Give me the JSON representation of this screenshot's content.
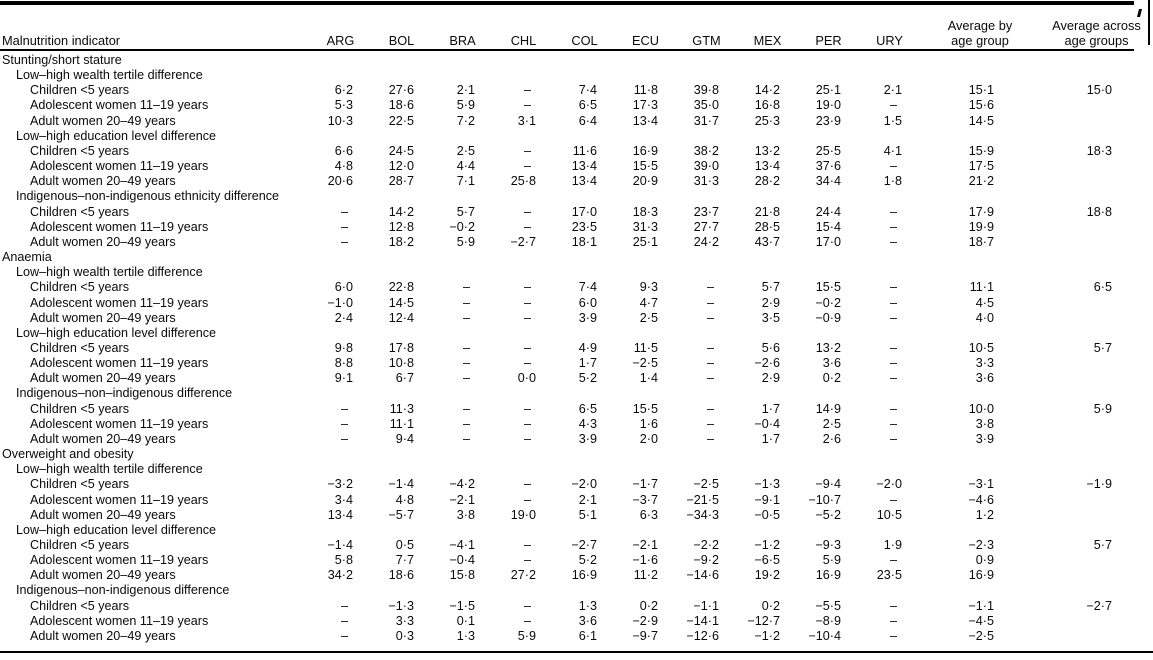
{
  "table": {
    "header": {
      "indicator": "Malnutrition indicator",
      "avg_by": [
        "Average by",
        "age group"
      ],
      "avg_across": [
        "Average across",
        "age groups"
      ]
    },
    "columns": [
      "ARG",
      "BOL",
      "BRA",
      "CHL",
      "COL",
      "ECU",
      "GTM",
      "MEX",
      "PER",
      "URY"
    ],
    "sections": [
      {
        "label": "Stunting/short stature",
        "groups": [
          {
            "label": "Low–high wealth tertile difference",
            "rows": [
              {
                "label": "Children <5 years",
                "values": [
                  "6·2",
                  "27·6",
                  "2·1",
                  "–",
                  "7·4",
                  "11·8",
                  "39·8",
                  "14·2",
                  "25·1",
                  "2·1"
                ],
                "avg_by": "15·1",
                "avg_across": "15·0"
              },
              {
                "label": "Adolescent women 11–19 years",
                "values": [
                  "5·3",
                  "18·6",
                  "5·9",
                  "–",
                  "6·5",
                  "17·3",
                  "35·0",
                  "16·8",
                  "19·0",
                  "–"
                ],
                "avg_by": "15·6"
              },
              {
                "label": "Adult women 20–49 years",
                "values": [
                  "10·3",
                  "22·5",
                  "7·2",
                  "3·1",
                  "6·4",
                  "13·4",
                  "31·7",
                  "25·3",
                  "23·9",
                  "1·5"
                ],
                "avg_by": "14·5"
              }
            ]
          },
          {
            "label": "Low–high education level difference",
            "rows": [
              {
                "label": "Children <5 years",
                "values": [
                  "6·6",
                  "24·5",
                  "2·5",
                  "–",
                  "11·6",
                  "16·9",
                  "38·2",
                  "13·2",
                  "25·5",
                  "4·1"
                ],
                "avg_by": "15·9",
                "avg_across": "18·3"
              },
              {
                "label": "Adolescent women 11–19 years",
                "values": [
                  "4·8",
                  "12·0",
                  "4·4",
                  "–",
                  "13·4",
                  "15·5",
                  "39·0",
                  "13·4",
                  "37·6",
                  "–"
                ],
                "avg_by": "17·5"
              },
              {
                "label": "Adult women 20–49 years",
                "values": [
                  "20·6",
                  "28·7",
                  "7·1",
                  "25·8",
                  "13·4",
                  "20·9",
                  "31·3",
                  "28·2",
                  "34·4",
                  "1·8"
                ],
                "avg_by": "21·2"
              }
            ]
          },
          {
            "label": "Indigenous–non-indigenous ethnicity difference",
            "rows": [
              {
                "label": "Children <5 years",
                "values": [
                  "–",
                  "14·2",
                  "5·7",
                  "–",
                  "17·0",
                  "18·3",
                  "23·7",
                  "21·8",
                  "24·4",
                  "–"
                ],
                "avg_by": "17·9",
                "avg_across": "18·8"
              },
              {
                "label": "Adolescent women 11–19 years",
                "values": [
                  "–",
                  "12·8",
                  "−0·2",
                  "–",
                  "23·5",
                  "31·3",
                  "27·7",
                  "28·5",
                  "15·4",
                  "–"
                ],
                "avg_by": "19·9"
              },
              {
                "label": "Adult women 20–49 years",
                "values": [
                  "–",
                  "18·2",
                  "5·9",
                  "−2·7",
                  "18·1",
                  "25·1",
                  "24·2",
                  "43·7",
                  "17·0",
                  "–"
                ],
                "avg_by": "18·7"
              }
            ]
          }
        ]
      },
      {
        "label": "Anaemia",
        "groups": [
          {
            "label": "Low–high wealth tertile difference",
            "rows": [
              {
                "label": "Children <5 years",
                "values": [
                  "6·0",
                  "22·8",
                  "–",
                  "–",
                  "7·4",
                  "9·3",
                  "–",
                  "5·7",
                  "15·5",
                  "–"
                ],
                "avg_by": "11·1",
                "avg_across": "6·5"
              },
              {
                "label": "Adolescent women 11–19 years",
                "values": [
                  "−1·0",
                  "14·5",
                  "–",
                  "–",
                  "6·0",
                  "4·7",
                  "–",
                  "2·9",
                  "−0·2",
                  "–"
                ],
                "avg_by": "4·5"
              },
              {
                "label": "Adult women 20–49 years",
                "values": [
                  "2·4",
                  "12·4",
                  "–",
                  "–",
                  "3·9",
                  "2·5",
                  "–",
                  "3·5",
                  "−0·9",
                  "–"
                ],
                "avg_by": "4·0"
              }
            ]
          },
          {
            "label": "Low–high education level difference",
            "rows": [
              {
                "label": "Children <5 years",
                "values": [
                  "9·8",
                  "17·8",
                  "–",
                  "–",
                  "4·9",
                  "11·5",
                  "–",
                  "5·6",
                  "13·2",
                  "–"
                ],
                "avg_by": "10·5",
                "avg_across": "5·7"
              },
              {
                "label": "Adolescent women 11–19 years",
                "values": [
                  "8·8",
                  "10·8",
                  "–",
                  "–",
                  "1·7",
                  "−2·5",
                  "–",
                  "−2·6",
                  "3·6",
                  "–"
                ],
                "avg_by": "3·3"
              },
              {
                "label": "Adult women 20–49 years",
                "values": [
                  "9·1",
                  "6·7",
                  "–",
                  "0·0",
                  "5·2",
                  "1·4",
                  "–",
                  "2·9",
                  "0·2",
                  "–"
                ],
                "avg_by": "3·6"
              }
            ]
          },
          {
            "label": "Indigenous–non–indigenous difference",
            "rows": [
              {
                "label": "Children <5 years",
                "values": [
                  "–",
                  "11·3",
                  "–",
                  "–",
                  "6·5",
                  "15·5",
                  "–",
                  "1·7",
                  "14·9",
                  "–"
                ],
                "avg_by": "10·0",
                "avg_across": "5·9"
              },
              {
                "label": "Adolescent women 11–19 years",
                "values": [
                  "–",
                  "11·1",
                  "–",
                  "–",
                  "4·3",
                  "1·6",
                  "–",
                  "−0·4",
                  "2·5",
                  "–"
                ],
                "avg_by": "3·8"
              },
              {
                "label": "Adult women 20–49 years",
                "values": [
                  "–",
                  "9·4",
                  "–",
                  "–",
                  "3·9",
                  "2·0",
                  "–",
                  "1·7",
                  "2·6",
                  "–"
                ],
                "avg_by": "3·9"
              }
            ]
          }
        ]
      },
      {
        "label": "Overweight and obesity",
        "groups": [
          {
            "label": "Low–high wealth tertile difference",
            "rows": [
              {
                "label": "Children <5 years",
                "values": [
                  "−3·2",
                  "−1·4",
                  "−4·2",
                  "–",
                  "−2·0",
                  "−1·7",
                  "−2·5",
                  "−1·3",
                  "−9·4",
                  "−2·0"
                ],
                "avg_by": "−3·1",
                "avg_across": "−1·9"
              },
              {
                "label": "Adolescent women 11–19 years",
                "values": [
                  "3·4",
                  "4·8",
                  "−2·1",
                  "–",
                  "2·1",
                  "−3·7",
                  "−21·5",
                  "−9·1",
                  "−10·7",
                  "–"
                ],
                "avg_by": "−4·6"
              },
              {
                "label": "Adult women 20–49 years",
                "values": [
                  "13·4",
                  "−5·7",
                  "3·8",
                  "19·0",
                  "5·1",
                  "6·3",
                  "−34·3",
                  "−0·5",
                  "−5·2",
                  "10·5"
                ],
                "avg_by": "1·2"
              }
            ]
          },
          {
            "label": "Low–high education level difference",
            "rows": [
              {
                "label": "Children <5 years",
                "values": [
                  "−1·4",
                  "0·5",
                  "−4·1",
                  "–",
                  "−2·7",
                  "−2·1",
                  "−2·2",
                  "−1·2",
                  "−9·3",
                  "1·9"
                ],
                "avg_by": "−2·3",
                "avg_across": "5·7"
              },
              {
                "label": "Adolescent women 11–19 years",
                "values": [
                  "5·8",
                  "7·7",
                  "−0·4",
                  "–",
                  "5·2",
                  "−1·6",
                  "−9·2",
                  "−6·5",
                  "5·9",
                  "–"
                ],
                "avg_by": "0·9"
              },
              {
                "label": "Adult women 20–49 years",
                "values": [
                  "34·2",
                  "18·6",
                  "15·8",
                  "27·2",
                  "16·9",
                  "11·2",
                  "−14·6",
                  "19·2",
                  "16·9",
                  "23·5"
                ],
                "avg_by": "16·9"
              }
            ]
          },
          {
            "label": "Indigenous–non-indigenous difference",
            "rows": [
              {
                "label": "Children <5 years",
                "values": [
                  "–",
                  "−1·3",
                  "−1·5",
                  "–",
                  "1·3",
                  "0·2",
                  "−1·1",
                  "0·2",
                  "−5·5",
                  "–"
                ],
                "avg_by": "−1·1",
                "avg_across": "−2·7"
              },
              {
                "label": "Adolescent women 11–19 years",
                "values": [
                  "–",
                  "3·3",
                  "0·1",
                  "–",
                  "3·6",
                  "−2·9",
                  "−14·1",
                  "−12·7",
                  "−8·9",
                  "–"
                ],
                "avg_by": "−4·5"
              },
              {
                "label": "Adult women 20–49 years",
                "values": [
                  "–",
                  "0·3",
                  "1·3",
                  "5·9",
                  "6·1",
                  "−9·7",
                  "−12·6",
                  "−1·2",
                  "−10·4",
                  "–"
                ],
                "avg_by": "−2·5"
              }
            ]
          }
        ]
      }
    ]
  }
}
